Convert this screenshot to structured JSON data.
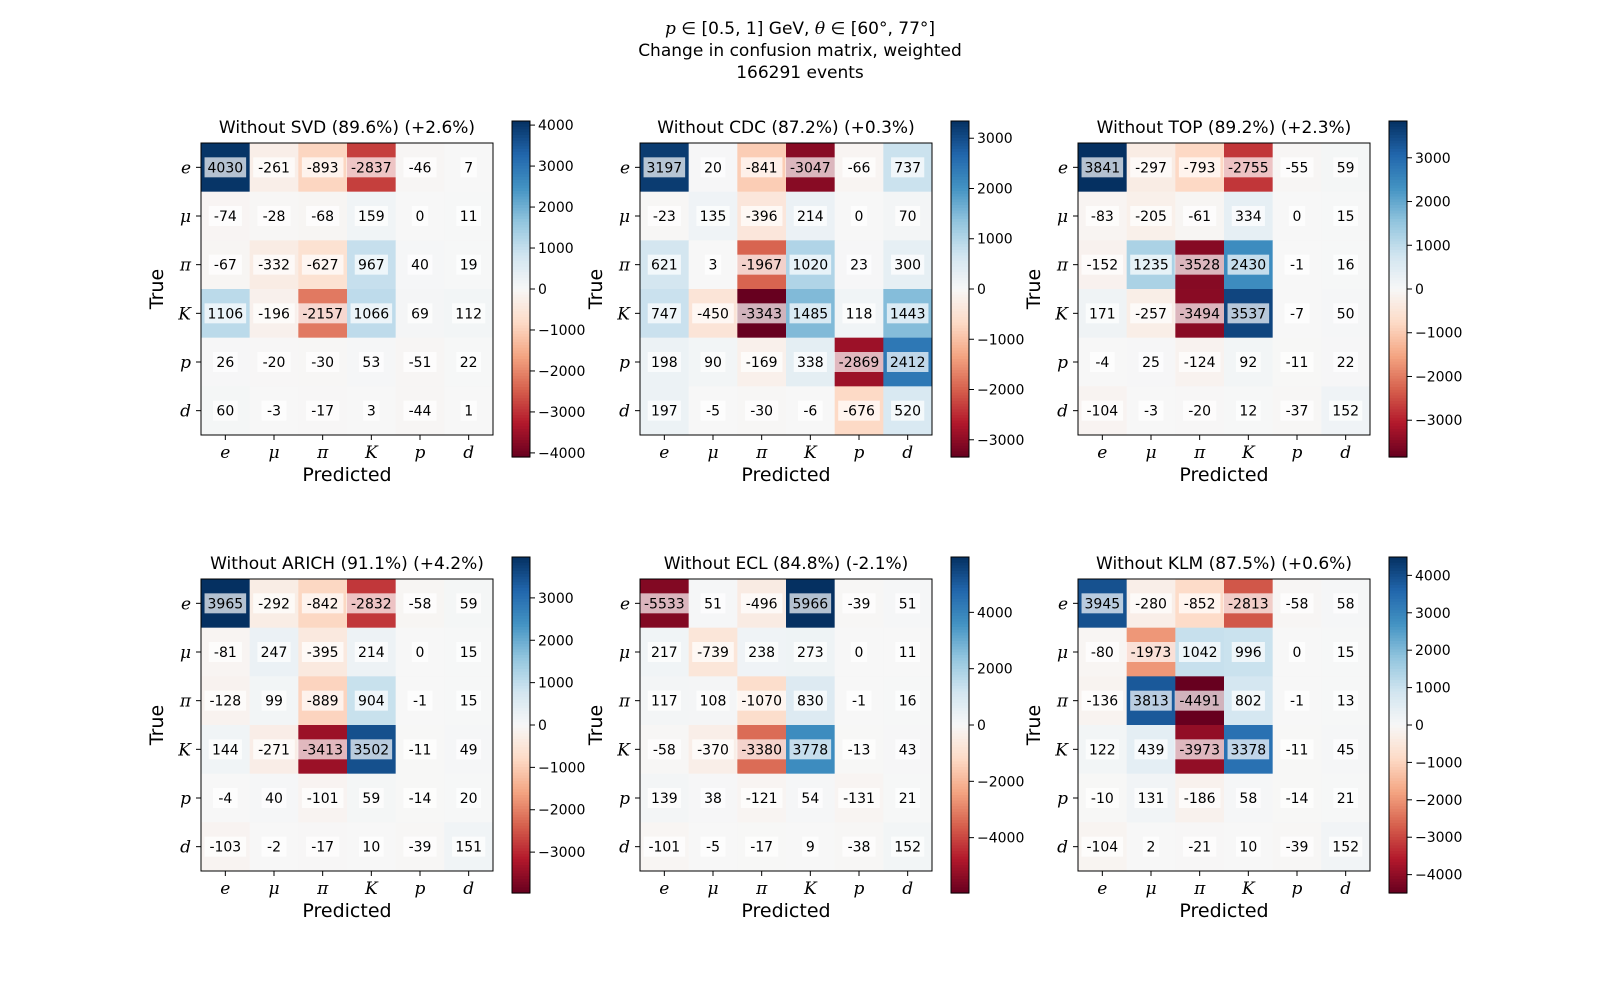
{
  "figure": {
    "title_line1_p": "p",
    "title_line1_a": " ∈ [0.5, 1] GeV, ",
    "title_line1_theta": "θ",
    "title_line1_b": " ∈ [60°, 77°]",
    "title_line2": "Change in confusion matrix, weighted",
    "title_line3": "166291 events"
  },
  "chart_data": [
    {
      "type": "heatmap",
      "title": "Without SVD (89.6%) (+2.6%)",
      "xlabel": "Predicted",
      "ylabel": "True",
      "categories_x": [
        "e",
        "μ",
        "π",
        "K",
        "p",
        "d"
      ],
      "categories_y": [
        "e",
        "μ",
        "π",
        "K",
        "p",
        "d"
      ],
      "values": [
        [
          4030,
          -261,
          -893,
          -2837,
          -46,
          7
        ],
        [
          -74,
          -28,
          -68,
          159,
          0,
          11
        ],
        [
          -67,
          -332,
          -627,
          967,
          40,
          19
        ],
        [
          1106,
          -196,
          -2157,
          1066,
          69,
          112
        ],
        [
          26,
          -20,
          -30,
          53,
          -51,
          22
        ],
        [
          60,
          -3,
          -17,
          3,
          -44,
          1
        ]
      ],
      "vlim": [
        -4100,
        4100
      ],
      "colorbar_ticks": [
        4000,
        3000,
        2000,
        1000,
        0,
        -1000,
        -2000,
        -3000,
        -4000
      ],
      "colorbar_tick_labels": [
        "4000",
        "3000",
        "2000",
        "1000",
        "0",
        "−1000",
        "−2000",
        "−3000",
        "−4000"
      ],
      "colormap": "RdBu"
    },
    {
      "type": "heatmap",
      "title": "Without CDC (87.2%) (+0.3%)",
      "xlabel": "Predicted",
      "ylabel": "True",
      "categories_x": [
        "e",
        "μ",
        "π",
        "K",
        "p",
        "d"
      ],
      "categories_y": [
        "e",
        "μ",
        "π",
        "K",
        "p",
        "d"
      ],
      "values": [
        [
          3197,
          20,
          -841,
          -3047,
          -66,
          737
        ],
        [
          -23,
          135,
          -396,
          214,
          0,
          70
        ],
        [
          621,
          3,
          -1967,
          1020,
          23,
          300
        ],
        [
          747,
          -450,
          -3343,
          1485,
          118,
          1443
        ],
        [
          198,
          90,
          -169,
          338,
          -2869,
          2412
        ],
        [
          197,
          -5,
          -30,
          -6,
          -676,
          520
        ]
      ],
      "vlim": [
        -3343,
        3343
      ],
      "colorbar_ticks": [
        3000,
        2000,
        1000,
        0,
        -1000,
        -2000,
        -3000
      ],
      "colorbar_tick_labels": [
        "3000",
        "2000",
        "1000",
        "0",
        "−1000",
        "−2000",
        "−3000"
      ],
      "colormap": "RdBu"
    },
    {
      "type": "heatmap",
      "title": "Without TOP (89.2%) (+2.3%)",
      "xlabel": "Predicted",
      "ylabel": "True",
      "categories_x": [
        "e",
        "μ",
        "π",
        "K",
        "p",
        "d"
      ],
      "categories_y": [
        "e",
        "μ",
        "π",
        "K",
        "p",
        "d"
      ],
      "values": [
        [
          3841,
          -297,
          -793,
          -2755,
          -55,
          59
        ],
        [
          -83,
          -205,
          -61,
          334,
          0,
          15
        ],
        [
          -152,
          1235,
          -3528,
          2430,
          -1,
          16
        ],
        [
          171,
          -257,
          -3494,
          3537,
          -7,
          50
        ],
        [
          -4,
          25,
          -124,
          92,
          -11,
          22
        ],
        [
          -104,
          -3,
          -20,
          12,
          -37,
          152
        ]
      ],
      "vlim": [
        -3841,
        3841
      ],
      "colorbar_ticks": [
        3000,
        2000,
        1000,
        0,
        -1000,
        -2000,
        -3000
      ],
      "colorbar_tick_labels": [
        "3000",
        "2000",
        "1000",
        "0",
        "−1000",
        "−2000",
        "−3000"
      ],
      "colormap": "RdBu"
    },
    {
      "type": "heatmap",
      "title": "Without ARICH (91.1%) (+4.2%)",
      "xlabel": "Predicted",
      "ylabel": "True",
      "categories_x": [
        "e",
        "μ",
        "π",
        "K",
        "p",
        "d"
      ],
      "categories_y": [
        "e",
        "μ",
        "π",
        "K",
        "p",
        "d"
      ],
      "values": [
        [
          3965,
          -292,
          -842,
          -2832,
          -58,
          59
        ],
        [
          -81,
          247,
          -395,
          214,
          0,
          15
        ],
        [
          -128,
          99,
          -889,
          904,
          -1,
          15
        ],
        [
          144,
          -271,
          -3413,
          3502,
          -11,
          49
        ],
        [
          -4,
          40,
          -101,
          59,
          -14,
          20
        ],
        [
          -103,
          -2,
          -17,
          10,
          -39,
          151
        ]
      ],
      "vlim": [
        -3965,
        3965
      ],
      "colorbar_ticks": [
        3000,
        2000,
        1000,
        0,
        -1000,
        -2000,
        -3000
      ],
      "colorbar_tick_labels": [
        "3000",
        "2000",
        "1000",
        "0",
        "−1000",
        "−2000",
        "−3000"
      ],
      "colormap": "RdBu"
    },
    {
      "type": "heatmap",
      "title": "Without ECL (84.8%) (-2.1%)",
      "xlabel": "Predicted",
      "ylabel": "True",
      "categories_x": [
        "e",
        "μ",
        "π",
        "K",
        "p",
        "d"
      ],
      "categories_y": [
        "e",
        "μ",
        "π",
        "K",
        "p",
        "d"
      ],
      "values": [
        [
          -5533,
          51,
          -496,
          5966,
          -39,
          51
        ],
        [
          217,
          -739,
          238,
          273,
          0,
          11
        ],
        [
          117,
          108,
          -1070,
          830,
          -1,
          16
        ],
        [
          -58,
          -370,
          -3380,
          3778,
          -13,
          43
        ],
        [
          139,
          38,
          -121,
          54,
          -131,
          21
        ],
        [
          -101,
          -5,
          -17,
          9,
          -38,
          152
        ]
      ],
      "vlim": [
        -5966,
        5966
      ],
      "colorbar_ticks": [
        4000,
        2000,
        0,
        -2000,
        -4000
      ],
      "colorbar_tick_labels": [
        "4000",
        "2000",
        "0",
        "−2000",
        "−4000"
      ],
      "colormap": "RdBu"
    },
    {
      "type": "heatmap",
      "title": "Without KLM (87.5%) (+0.6%)",
      "xlabel": "Predicted",
      "ylabel": "True",
      "categories_x": [
        "e",
        "μ",
        "π",
        "K",
        "p",
        "d"
      ],
      "categories_y": [
        "e",
        "μ",
        "π",
        "K",
        "p",
        "d"
      ],
      "values": [
        [
          3945,
          -280,
          -852,
          -2813,
          -58,
          58
        ],
        [
          -80,
          -1973,
          1042,
          996,
          0,
          15
        ],
        [
          -136,
          3813,
          -4491,
          802,
          -1,
          13
        ],
        [
          122,
          439,
          -3973,
          3378,
          -11,
          45
        ],
        [
          -10,
          131,
          -186,
          58,
          -14,
          21
        ],
        [
          -104,
          2,
          -21,
          10,
          -39,
          152
        ]
      ],
      "vlim": [
        -4491,
        4491
      ],
      "colorbar_ticks": [
        4000,
        3000,
        2000,
        1000,
        0,
        -1000,
        -2000,
        -3000,
        -4000
      ],
      "colorbar_tick_labels": [
        "4000",
        "3000",
        "2000",
        "1000",
        "0",
        "−1000",
        "−2000",
        "−3000",
        "−4000"
      ],
      "colormap": "RdBu"
    }
  ]
}
